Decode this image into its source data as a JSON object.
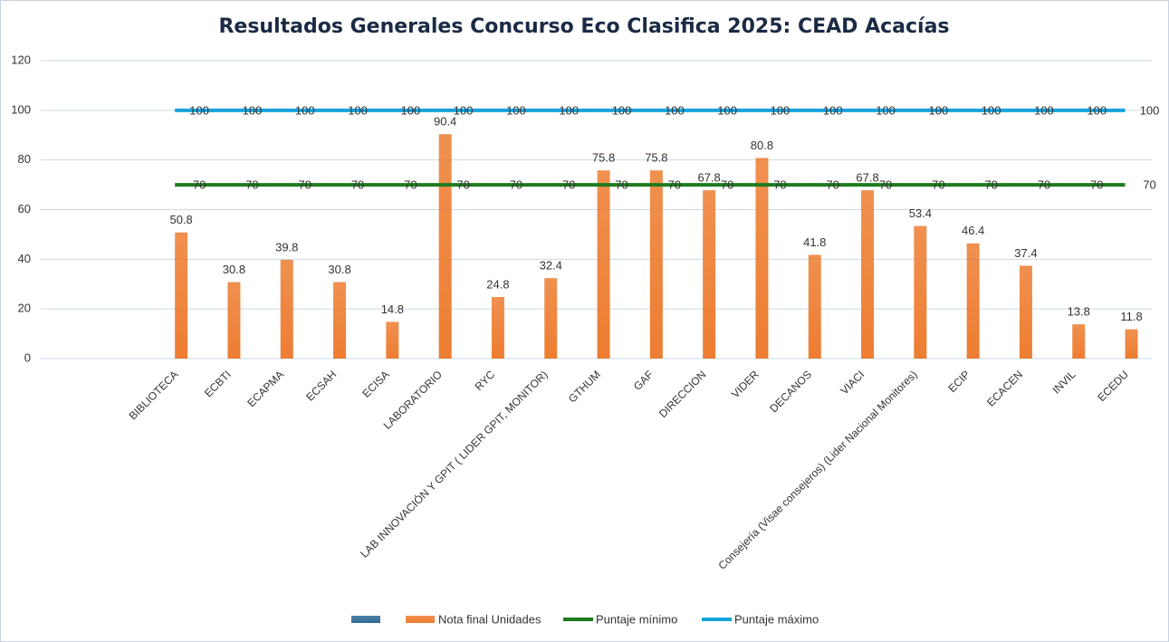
{
  "chart_data": {
    "type": "bar",
    "title": "Resultados Generales Concurso Eco Clasifica 2025: CEAD Acacías",
    "categories": [
      "BIBLIOTECA",
      "ECBTI",
      "ECAPMA",
      "ECSAH",
      "ECISA",
      "LABORATORIO",
      "RYC",
      "LAB INNOVACIÓN Y GPIT ( LIDER GPIT, MONITOR)",
      "GTHUM",
      "GAF",
      "DIRECCION",
      "VIDER",
      "DECANOS",
      "VIACI",
      "Consejería (Visae consejeros) (Lider Nacional Monitores)",
      "ECIP",
      "ECACEN",
      "INVIL",
      "ECEDU"
    ],
    "series": [
      {
        "type": "bar",
        "color": "#2f6a96",
        "values": [
          null,
          null,
          null,
          null,
          null,
          null,
          null,
          null,
          null,
          null,
          null,
          null,
          null,
          null,
          null,
          null,
          null,
          null,
          null
        ]
      },
      {
        "type": "bar",
        "name": "Nota final Unidades",
        "color": "#ed7d31",
        "values": [
          50.8,
          30.8,
          39.8,
          30.8,
          14.8,
          90.4,
          24.8,
          32.4,
          75.8,
          75.8,
          67.8,
          80.8,
          41.8,
          67.8,
          53.4,
          46.4,
          37.4,
          13.8,
          11.8
        ]
      },
      {
        "type": "line",
        "name": "Puntaje mínimo",
        "color": "#1e7b1e",
        "values": [
          70,
          70,
          70,
          70,
          70,
          70,
          70,
          70,
          70,
          70,
          70,
          70,
          70,
          70,
          70,
          70,
          70,
          70,
          70
        ]
      },
      {
        "type": "line",
        "name": "Puntaje máximo",
        "color": "#17a3dc",
        "values": [
          100,
          100,
          100,
          100,
          100,
          100,
          100,
          100,
          100,
          100,
          100,
          100,
          100,
          100,
          100,
          100,
          100,
          100,
          100
        ]
      }
    ],
    "ylim": [
      0,
      120
    ],
    "yticks": [
      0,
      20,
      40,
      60,
      80,
      100,
      120
    ],
    "grid": true,
    "legend": "bottom"
  }
}
